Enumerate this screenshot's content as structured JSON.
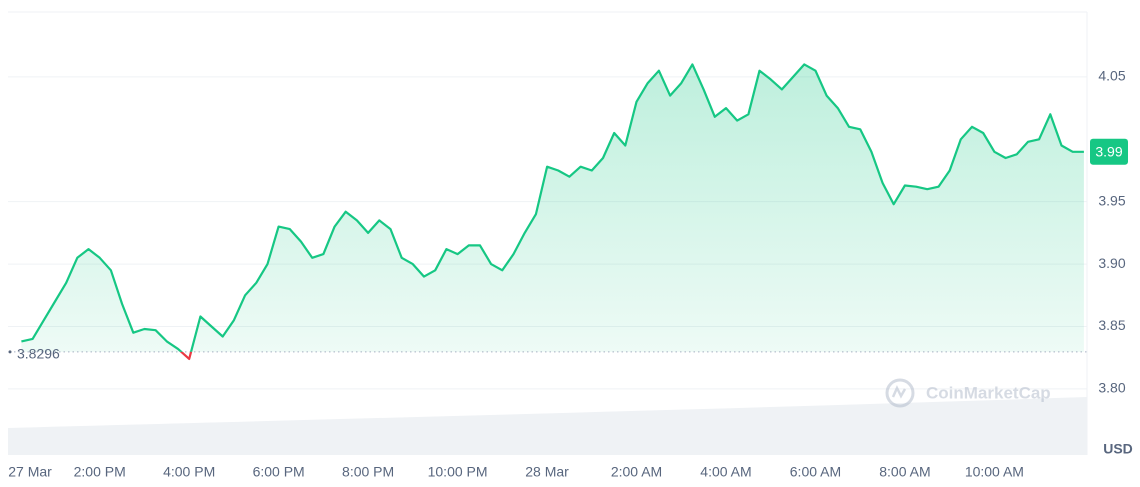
{
  "chart_data": {
    "type": "line",
    "color": "#16c784",
    "below_color": "#ea3943",
    "reference": 3.8296,
    "current_price": 3.99,
    "watermark": "CoinMarketCap",
    "y_axis_label": "USD",
    "grid": true,
    "xlim": [
      11.95,
      36.07
    ],
    "ylim": [
      3.747,
      4.102
    ],
    "yticks": [
      {
        "value": 3.8,
        "label": "3.80"
      },
      3.85,
      {
        "value": 3.9,
        "label": "3.90"
      },
      3.95,
      4.05
    ],
    "xticks": [
      {
        "value": 12,
        "label": "27 Mar"
      },
      {
        "value": 14,
        "label": "2:00 PM"
      },
      {
        "value": 16,
        "label": "4:00 PM"
      },
      {
        "value": 18,
        "label": "6:00 PM"
      },
      {
        "value": 20,
        "label": "8:00 PM"
      },
      {
        "value": 22,
        "label": "10:00 PM"
      },
      {
        "value": 24,
        "label": "28 Mar"
      },
      {
        "value": 26,
        "label": "2:00 AM"
      },
      {
        "value": 28,
        "label": "4:00 AM"
      },
      {
        "value": 30,
        "label": "6:00 AM"
      },
      {
        "value": 32,
        "label": "8:00 AM"
      },
      {
        "value": 34,
        "label": "10:00 AM"
      }
    ],
    "x": [
      12.25,
      12.5,
      12.75,
      13,
      13.25,
      13.5,
      13.75,
      14,
      14.25,
      14.5,
      14.75,
      15,
      15.25,
      15.5,
      15.75,
      16,
      16.25,
      16.5,
      16.75,
      17,
      17.25,
      17.5,
      17.75,
      18,
      18.25,
      18.5,
      18.75,
      19,
      19.25,
      19.5,
      19.75,
      20,
      20.25,
      20.5,
      20.75,
      21,
      21.25,
      21.5,
      21.75,
      22,
      22.25,
      22.5,
      22.75,
      23,
      23.25,
      23.5,
      23.75,
      24,
      24.25,
      24.5,
      24.75,
      25,
      25.25,
      25.5,
      25.75,
      26,
      26.25,
      26.5,
      26.75,
      27,
      27.25,
      27.5,
      27.75,
      28,
      28.25,
      28.5,
      28.75,
      29,
      29.25,
      29.5,
      29.75,
      30,
      30.25,
      30.5,
      30.75,
      31,
      31.25,
      31.5,
      31.75,
      32,
      32.25,
      32.5,
      32.75,
      33,
      33.25,
      33.5,
      33.75,
      34,
      34.25,
      34.5,
      34.75,
      35,
      35.25,
      35.5,
      35.75,
      36
    ],
    "values": [
      3.838,
      3.84,
      3.855,
      3.87,
      3.885,
      3.905,
      3.912,
      3.905,
      3.895,
      3.868,
      3.845,
      3.848,
      3.847,
      3.838,
      3.832,
      3.824,
      3.858,
      3.85,
      3.842,
      3.855,
      3.875,
      3.885,
      3.9,
      3.93,
      3.928,
      3.918,
      3.905,
      3.908,
      3.93,
      3.942,
      3.935,
      3.925,
      3.935,
      3.928,
      3.905,
      3.9,
      3.89,
      3.895,
      3.912,
      3.908,
      3.915,
      3.915,
      3.9,
      3.895,
      3.908,
      3.925,
      3.94,
      3.978,
      3.975,
      3.97,
      3.978,
      3.975,
      3.985,
      4.005,
      3.995,
      4.03,
      4.045,
      4.055,
      4.035,
      4.045,
      4.06,
      4.04,
      4.018,
      4.025,
      4.015,
      4.02,
      4.055,
      4.048,
      4.04,
      4.05,
      4.06,
      4.055,
      4.035,
      4.025,
      4.01,
      4.008,
      3.99,
      3.965,
      3.948,
      3.963,
      3.962,
      3.96,
      3.962,
      3.975,
      4.0,
      4.01,
      4.005,
      3.99,
      3.985,
      3.988,
      3.998,
      4.0,
      4.02,
      3.995,
      3.99,
      3.99
    ]
  }
}
